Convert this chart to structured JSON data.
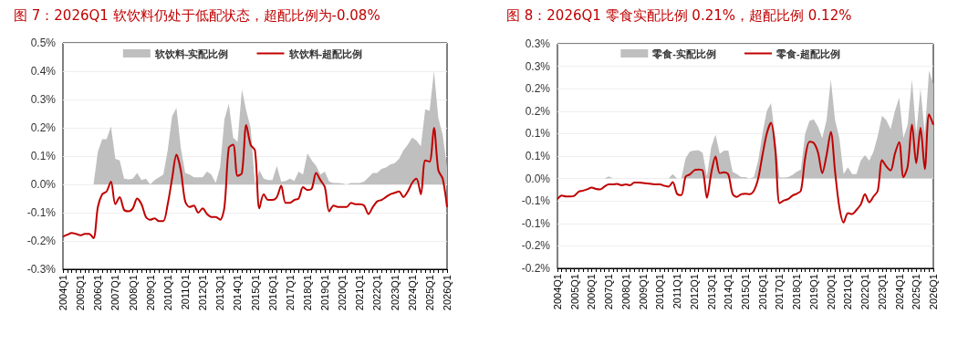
{
  "chart_data": [
    {
      "type": "line",
      "title": "图 7：2026Q1 软饮料仍处于低配状态，超配比例为-0.08%",
      "categories": [
        "2004Q1",
        null,
        null,
        null,
        "2005Q1",
        null,
        null,
        null,
        "2006Q1",
        null,
        null,
        null,
        "2007Q1",
        null,
        null,
        null,
        "2008Q1",
        null,
        null,
        null,
        "2009Q1",
        null,
        null,
        null,
        "2010Q1",
        null,
        null,
        null,
        "2011Q1",
        null,
        null,
        null,
        "2012Q1",
        null,
        null,
        null,
        "2013Q1",
        null,
        null,
        null,
        "2014Q1",
        null,
        null,
        null,
        "2015Q1",
        null,
        null,
        null,
        "2016Q1",
        null,
        null,
        null,
        "2017Q1",
        null,
        null,
        null,
        "2018Q1",
        null,
        null,
        null,
        "2019Q1",
        null,
        null,
        null,
        "2020Q1",
        null,
        null,
        null,
        "2021Q1",
        null,
        null,
        null,
        "2022Q1",
        null,
        null,
        null,
        "2023Q1",
        null,
        null,
        null,
        "2024Q1",
        null,
        null,
        null,
        "2025Q1",
        null,
        null,
        null,
        "2026Q1"
      ],
      "series": [
        {
          "name": "软饮料-实配比例",
          "type": "area",
          "color": "#bfbfbf",
          "values": [
            0,
            0,
            0,
            0,
            0,
            0,
            0,
            0,
            0.115,
            0.16,
            0.16,
            0.205,
            0.09,
            0.085,
            0.02,
            0.018,
            0.02,
            0.04,
            0.015,
            0.02,
            0,
            0.015,
            0.025,
            0.035,
            0.12,
            0.24,
            0.27,
            0.13,
            0.04,
            0.035,
            0.025,
            0.025,
            0.025,
            0.045,
            0.035,
            0.005,
            0.06,
            0.23,
            0.285,
            0.165,
            0.15,
            0.335,
            0.26,
            0.2,
            0,
            0.05,
            0.02,
            0.015,
            0.015,
            0.065,
            0.01,
            0.012,
            0.02,
            0.012,
            0.045,
            0.035,
            0.11,
            0.085,
            0.065,
            0.035,
            0.045,
            0.01,
            0.005,
            0.005,
            0.003,
            0,
            0.005,
            0.005,
            0.005,
            0.01,
            0.025,
            0.04,
            0.04,
            0.055,
            0.06,
            0.07,
            0.075,
            0.09,
            0.12,
            0.14,
            0.165,
            0.155,
            0.135,
            0.265,
            0.26,
            0.4,
            0.235,
            0.175,
            0.06
          ]
        },
        {
          "name": "软饮料-超配比例",
          "type": "line",
          "color": "#c00000",
          "values": [
            -0.185,
            -0.178,
            -0.172,
            -0.175,
            -0.18,
            -0.175,
            -0.175,
            -0.19,
            -0.08,
            -0.035,
            -0.025,
            0.01,
            -0.07,
            -0.045,
            -0.09,
            -0.095,
            -0.085,
            -0.05,
            -0.07,
            -0.115,
            -0.125,
            -0.12,
            -0.13,
            -0.13,
            -0.07,
            0.02,
            0.105,
            0.05,
            -0.06,
            -0.08,
            -0.075,
            -0.1,
            -0.085,
            -0.105,
            -0.115,
            -0.115,
            -0.125,
            -0.08,
            0.13,
            0.14,
            0.03,
            0.04,
            0.21,
            0.14,
            0.12,
            -0.085,
            -0.035,
            -0.055,
            -0.055,
            -0.045,
            -0.005,
            -0.065,
            -0.065,
            -0.055,
            -0.05,
            -0.01,
            -0.02,
            -0.015,
            0.04,
            0.015,
            -0.01,
            -0.095,
            -0.075,
            -0.08,
            -0.08,
            -0.08,
            -0.065,
            -0.07,
            -0.07,
            -0.075,
            -0.105,
            -0.08,
            -0.06,
            -0.055,
            -0.045,
            -0.035,
            -0.03,
            -0.025,
            -0.045,
            -0.025,
            0.005,
            0.02,
            -0.035,
            0.085,
            0.08,
            0.2,
            0.05,
            0.02,
            -0.08
          ]
        }
      ],
      "ylim": [
        -0.3,
        0.5
      ],
      "yticks": [
        {
          "value": -0.3,
          "label": "-0.3%"
        },
        {
          "value": -0.2,
          "label": "-0.2%"
        },
        {
          "value": -0.1,
          "label": "-0.1%"
        },
        {
          "value": 0,
          "label": "0.0%"
        },
        {
          "value": 0.1,
          "label": "0.1%"
        },
        {
          "value": 0.2,
          "label": "0.2%"
        },
        {
          "value": 0.3,
          "label": "0.3%"
        },
        {
          "value": 0.4,
          "label": "0.4%"
        },
        {
          "value": 0.5,
          "label": "0.5%"
        }
      ],
      "grid": "y",
      "legend": "top"
    },
    {
      "type": "line",
      "title": "图 8：2026Q1 零食实配比例 0.21%，超配比例 0.12%",
      "categories": [
        "2004Q1",
        null,
        null,
        null,
        "2005Q1",
        null,
        null,
        null,
        "2006Q1",
        null,
        null,
        null,
        "2007Q1",
        null,
        null,
        null,
        "2008Q1",
        null,
        null,
        null,
        "2009Q1",
        null,
        null,
        null,
        "2010Q1",
        null,
        null,
        null,
        "2011Q1",
        null,
        null,
        null,
        "2012Q1",
        null,
        null,
        null,
        "2013Q1",
        null,
        null,
        null,
        "2014Q1",
        null,
        null,
        null,
        "2015Q1",
        null,
        null,
        null,
        "2016Q1",
        null,
        null,
        null,
        "2017Q1",
        null,
        null,
        null,
        "2018Q1",
        null,
        null,
        null,
        "2019Q1",
        null,
        null,
        null,
        "2020Q1",
        null,
        null,
        null,
        "2021Q1",
        null,
        null,
        null,
        "2022Q1",
        null,
        null,
        null,
        "2023Q1",
        null,
        null,
        null,
        "2024Q1",
        null,
        null,
        null,
        "2025Q1",
        null,
        null,
        null,
        "2026Q1"
      ],
      "series": [
        {
          "name": "零食-实配比例",
          "type": "area",
          "color": "#bfbfbf",
          "values": [
            0,
            0,
            0,
            0,
            0,
            0,
            0,
            0,
            0,
            0,
            0,
            0,
            0.005,
            0,
            0,
            0,
            0,
            0,
            0,
            0,
            0,
            0,
            0,
            0,
            0,
            0,
            0,
            0.01,
            0,
            0,
            0.045,
            0.06,
            0.062,
            0.063,
            0.057,
            0.005,
            0.07,
            0.098,
            0.055,
            0.062,
            0.062,
            0.015,
            0.01,
            0.003,
            0.003,
            0,
            0.003,
            0.04,
            0.1,
            0.15,
            0.168,
            0.09,
            0.002,
            0.002,
            0.003,
            0.008,
            0.015,
            0.02,
            0.1,
            0.128,
            0.132,
            0.115,
            0.09,
            0.13,
            0.22,
            0.13,
            0.09,
            0.01,
            0.025,
            0.01,
            0.01,
            0.04,
            0.052,
            0.04,
            0.06,
            0.095,
            0.14,
            0.13,
            0.11,
            0.15,
            0.18,
            0.09,
            0.12,
            0.22,
            0.1,
            0.2,
            0.1,
            0.24,
            0.21
          ]
        },
        {
          "name": "零食-超配比例",
          "type": "line",
          "color": "#c00000",
          "values": [
            -0.046,
            -0.038,
            -0.04,
            -0.04,
            -0.038,
            -0.029,
            -0.027,
            -0.024,
            -0.02,
            -0.023,
            -0.024,
            -0.018,
            -0.013,
            -0.013,
            -0.012,
            -0.015,
            -0.013,
            -0.015,
            -0.009,
            -0.009,
            -0.01,
            -0.011,
            -0.012,
            -0.013,
            -0.013,
            -0.016,
            -0.018,
            -0.008,
            -0.034,
            -0.037,
            0.004,
            0.009,
            0.018,
            0.02,
            0.018,
            -0.043,
            0.012,
            0.049,
            0.012,
            0.014,
            0.009,
            -0.034,
            -0.041,
            -0.035,
            -0.034,
            -0.035,
            -0.027,
            0,
            0.052,
            0.1,
            0.124,
            0.064,
            -0.055,
            -0.049,
            -0.046,
            -0.038,
            -0.034,
            -0.027,
            0.046,
            0.082,
            0.079,
            0.058,
            0.012,
            0.052,
            0.104,
            0.015,
            -0.064,
            -0.098,
            -0.077,
            -0.079,
            -0.07,
            -0.058,
            -0.035,
            -0.053,
            -0.04,
            -0.027,
            0.041,
            0.027,
            0.018,
            0.055,
            0.081,
            0.003,
            0.027,
            0.12,
            0.034,
            0.113,
            0.021,
            0.143,
            0.12
          ]
        }
      ],
      "ylim": [
        -0.2,
        0.3
      ],
      "yticks": [
        {
          "value": -0.2,
          "label": "-0.2%"
        },
        {
          "value": -0.15,
          "label": "-0.2%"
        },
        {
          "value": -0.1,
          "label": "-0.1%"
        },
        {
          "value": -0.05,
          "label": "-0.1%"
        },
        {
          "value": 0,
          "label": "0.0%"
        },
        {
          "value": 0.05,
          "label": "0.1%"
        },
        {
          "value": 0.1,
          "label": "0.1%"
        },
        {
          "value": 0.15,
          "label": "0.2%"
        },
        {
          "value": 0.2,
          "label": "0.2%"
        },
        {
          "value": 0.25,
          "label": "0.3%"
        },
        {
          "value": 0.3,
          "label": "0.3%"
        }
      ],
      "grid": "y",
      "legend": "top"
    }
  ]
}
